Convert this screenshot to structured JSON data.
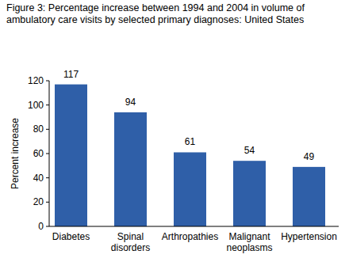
{
  "chart_data": {
    "type": "bar",
    "title": "Figure 3: Percentage increase between 1994 and 2004 in volume of ambulatory care visits by selected primary diagnoses: United States",
    "y_label": "Percent increase",
    "categories": [
      "Diabetes",
      "Spinal disorders",
      "Arthropathies",
      "Malignant neoplasms",
      "Hypertension"
    ],
    "values": [
      117,
      94,
      61,
      54,
      49
    ],
    "color": "#2f5fa8",
    "ylim": [
      0,
      120
    ],
    "yticks": [
      0,
      20,
      40,
      60,
      80,
      100,
      120
    ],
    "grid": false,
    "data_labels": true
  }
}
